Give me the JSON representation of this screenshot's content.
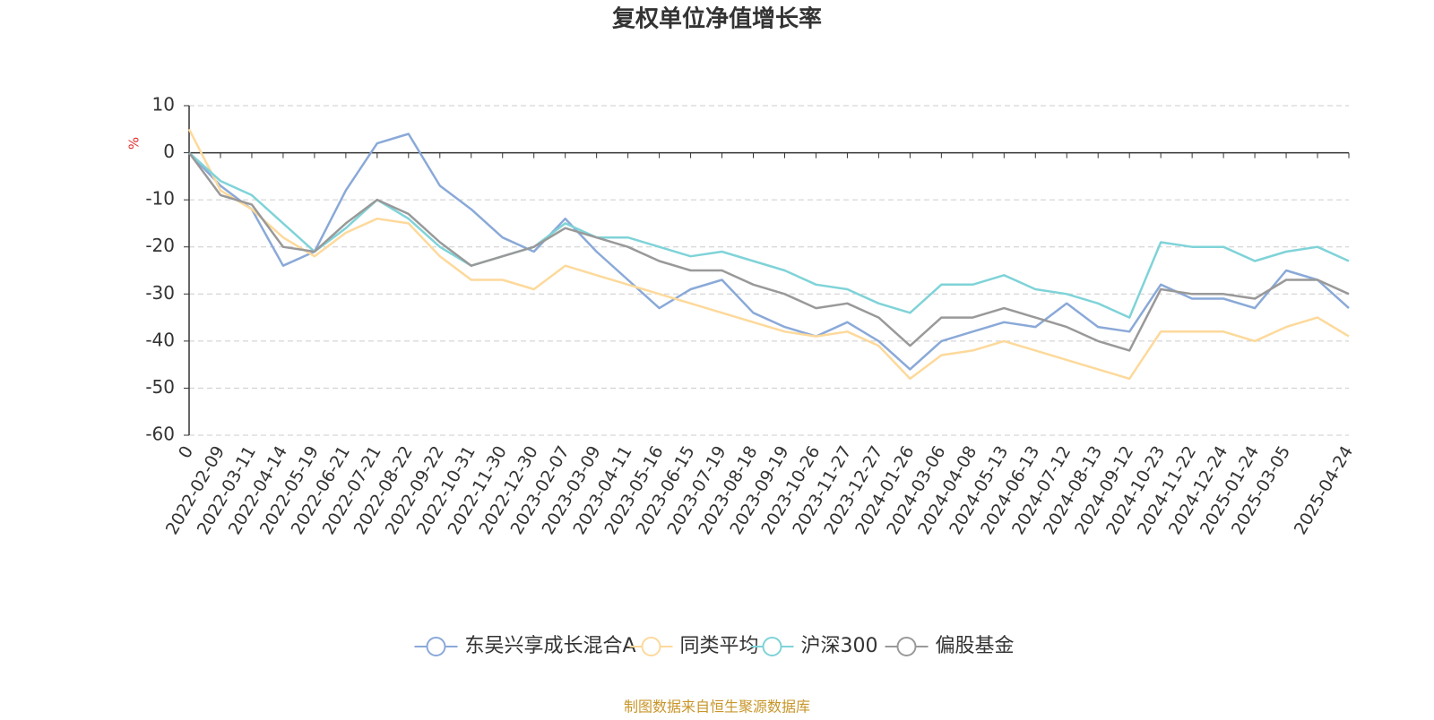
{
  "chart_data": {
    "type": "line",
    "title": "复权单位净值增长率",
    "y_label": "%",
    "source": "制图数据来自恒生聚源数据库",
    "categories": [
      "0",
      "2022-02-09",
      "2022-03-11",
      "2022-04-14",
      "2022-05-19",
      "2022-06-21",
      "2022-07-21",
      "2022-08-22",
      "2022-09-22",
      "2022-10-31",
      "2022-11-30",
      "2022-12-30",
      "2023-02-07",
      "2023-03-09",
      "2023-04-11",
      "2023-05-16",
      "2023-06-15",
      "2023-07-19",
      "2023-08-18",
      "2023-09-19",
      "2023-10-26",
      "2023-11-27",
      "2023-12-27",
      "2024-01-26",
      "2024-03-06",
      "2024-04-08",
      "2024-05-13",
      "2024-06-13",
      "2024-07-12",
      "2024-08-13",
      "2024-09-12",
      "2024-10-23",
      "2024-11-22",
      "2024-12-24",
      "2025-01-24",
      "2025-03-05",
      null,
      "2025-04-24"
    ],
    "series": [
      {
        "name": "东吴兴享成长混合A",
        "color": "#8aa9d8",
        "values": [
          0,
          -7,
          -12,
          -24,
          -21,
          -8,
          2,
          4,
          -7,
          -12,
          -18,
          -21,
          -14,
          -21,
          -27,
          -33,
          -29,
          -27,
          -34,
          -37,
          -39,
          -36,
          -40,
          -46,
          -40,
          -38,
          -36,
          -37,
          -32,
          -37,
          -38,
          -28,
          -31,
          -31,
          -33,
          -25,
          -27,
          -33
        ]
      },
      {
        "name": "同类平均",
        "color": "#fdd99b",
        "values": [
          5,
          -8,
          -12,
          -18,
          -22,
          -17,
          -14,
          -15,
          -22,
          -27,
          -27,
          -29,
          -24,
          -26,
          -28,
          -30,
          -32,
          -34,
          -36,
          -38,
          -39,
          -38,
          -41,
          -48,
          -43,
          -42,
          -40,
          -42,
          -44,
          -46,
          -48,
          -38,
          -38,
          -38,
          -40,
          -37,
          -35,
          -39
        ]
      },
      {
        "name": "沪深300",
        "color": "#7fd3d8",
        "values": [
          0,
          -6,
          -9,
          -15,
          -21,
          -16,
          -10,
          -14,
          -20,
          -24,
          -22,
          -20,
          -15,
          -18,
          -18,
          -20,
          -22,
          -21,
          -23,
          -25,
          -28,
          -29,
          -32,
          -34,
          -28,
          -28,
          -26,
          -29,
          -30,
          -32,
          -35,
          -19,
          -20,
          -20,
          -23,
          -21,
          -20,
          -23
        ]
      },
      {
        "name": "偏股基金",
        "color": "#999999",
        "values": [
          0,
          -9,
          -11,
          -20,
          -21,
          -15,
          -10,
          -13,
          -19,
          -24,
          -22,
          -20,
          -16,
          -18,
          -20,
          -23,
          -25,
          -25,
          -28,
          -30,
          -33,
          -32,
          -35,
          -41,
          -35,
          -35,
          -33,
          -35,
          -37,
          -40,
          -42,
          -29,
          -30,
          -30,
          -31,
          -27,
          -27,
          -30
        ]
      }
    ],
    "ylim": [
      -60,
      10
    ],
    "yticks": [
      10,
      0,
      -10,
      -20,
      -30,
      -40,
      -50,
      -60
    ],
    "grid": true
  }
}
